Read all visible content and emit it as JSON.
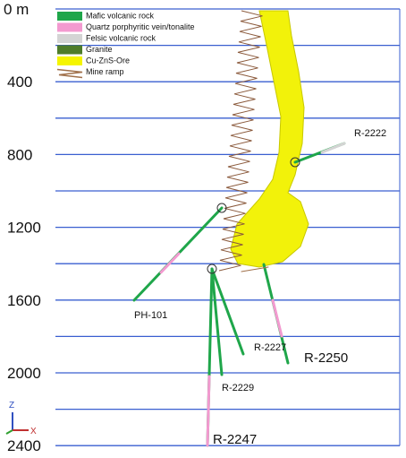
{
  "depth_labels": [
    "0 m",
    "400",
    "800",
    "1200",
    "1600",
    "2000",
    "2400"
  ],
  "legend": [
    {
      "label": "Mafic volcanic rock",
      "color": "#1fa64a"
    },
    {
      "label": "Quartz porphyritic vein/tonalite",
      "color": "#f39ad0"
    },
    {
      "label": "Felsic volcanic rock",
      "color": "#d4d4d4"
    },
    {
      "label": "Granite",
      "color": "#4f7d2a"
    },
    {
      "label": "Cu-ZnS-Ore",
      "color": "#f5f500"
    },
    {
      "label": "Mine ramp",
      "color": "#a0704a"
    }
  ],
  "boreholes": [
    "R-2222",
    "PH-101",
    "R-2227",
    "R-2250",
    "R-2229",
    "R-2247"
  ],
  "axes_triad": {
    "z": "Z",
    "x": "X"
  }
}
